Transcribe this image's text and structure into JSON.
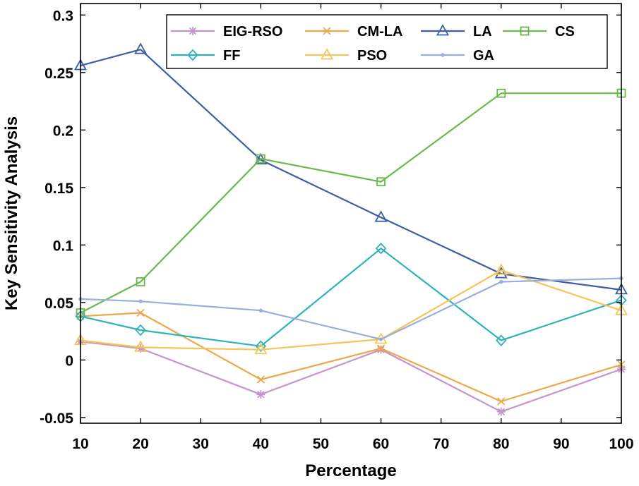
{
  "chart_data": {
    "type": "line",
    "title": "",
    "xlabel": "Percentage",
    "ylabel": "Key Sensitivity Analysis",
    "xlim": [
      10,
      100
    ],
    "ylim": [
      -0.055,
      0.31
    ],
    "xticks": [
      10,
      20,
      30,
      40,
      50,
      60,
      70,
      80,
      90,
      100
    ],
    "xtick_labels": [
      "10",
      "20",
      "30",
      "40",
      "50",
      "60",
      "70",
      "80",
      "90",
      "100"
    ],
    "yticks": [
      -0.05,
      0,
      0.05,
      0.1,
      0.15,
      0.2,
      0.25,
      0.3
    ],
    "ytick_labels": [
      "-0.05",
      "0",
      "0.05",
      "0.1",
      "0.15",
      "0.2",
      "0.25",
      "0.3"
    ],
    "grid": false,
    "legend_position": "top-right",
    "x": [
      10,
      20,
      40,
      60,
      80,
      100
    ],
    "series": [
      {
        "name": "EIG-RSO",
        "marker": "asterisk",
        "color": "#c495cc",
        "values": [
          0.016,
          0.01,
          -0.03,
          0.009,
          -0.045,
          -0.008
        ]
      },
      {
        "name": "CM-LA",
        "marker": "x",
        "color": "#eca84a",
        "values": [
          0.038,
          0.041,
          -0.017,
          0.01,
          -0.036,
          -0.004
        ]
      },
      {
        "name": "LA",
        "marker": "triangle",
        "color": "#3b5ea6",
        "values": [
          0.256,
          0.27,
          0.174,
          0.124,
          0.075,
          0.061
        ]
      },
      {
        "name": "CS",
        "marker": "square",
        "color": "#6ab94a",
        "values": [
          0.041,
          0.068,
          0.175,
          0.155,
          0.232,
          0.232
        ]
      },
      {
        "name": "FF",
        "marker": "diamond",
        "color": "#2fb3bb",
        "values": [
          0.038,
          0.026,
          0.012,
          0.097,
          0.017,
          0.052
        ]
      },
      {
        "name": "PSO",
        "marker": "triangle",
        "color": "#f4c559",
        "values": [
          0.017,
          0.011,
          0.009,
          0.018,
          0.078,
          0.043
        ]
      },
      {
        "name": "GA",
        "marker": "point",
        "color": "#9aaedb",
        "values": [
          0.053,
          0.051,
          0.043,
          0.018,
          0.068,
          0.071
        ]
      }
    ]
  }
}
